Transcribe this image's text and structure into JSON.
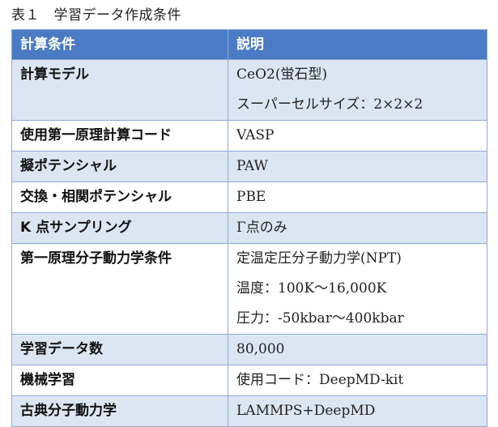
{
  "caption": "表１　学習データ作成条件",
  "table": {
    "headers": [
      "計算条件",
      "説明"
    ],
    "rows": [
      {
        "label": "計算モデル",
        "lines": [
          "CeO2(蛍石型)",
          "スーパーセルサイズ：2×2×2"
        ]
      },
      {
        "label": "使用第一原理計算コード",
        "lines": [
          "VASP"
        ]
      },
      {
        "label": "擬ポテンシャル",
        "lines": [
          "PAW"
        ]
      },
      {
        "label": "交換・相関ポテンシャル",
        "lines": [
          "PBE"
        ]
      },
      {
        "label": "K 点サンプリング",
        "lines": [
          "Γ点のみ"
        ]
      },
      {
        "label": "第一原理分子動力学条件",
        "lines": [
          "定温定圧分子動力学(NPT)",
          "温度：100K～16,000K",
          "圧力：-50kbar～400kbar"
        ]
      },
      {
        "label": "学習データ数",
        "lines": [
          "80,000"
        ]
      },
      {
        "label": "機械学習",
        "lines": [
          "使用コード：DeepMD-kit"
        ]
      },
      {
        "label": "古典分子動力学",
        "lines": [
          "LAMMPS+DeepMD"
        ]
      }
    ]
  }
}
